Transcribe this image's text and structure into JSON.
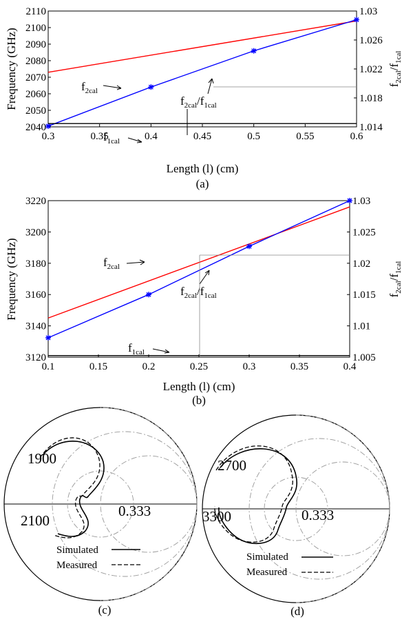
{
  "colors": {
    "f2": "#ff0000",
    "ratio": "#0000ff",
    "f1": "#000000"
  },
  "chart_data": [
    {
      "panel": "(a)",
      "type": "line",
      "xlabel": "Length (l) (cm)",
      "ylabel_left": "Frequency (GHz)",
      "ylabel_right": {
        "base": "f",
        "sub1": "2cal",
        "slash": "/f",
        "sub2": "1cal"
      },
      "xlim": [
        0.3,
        0.6
      ],
      "ylim_left": [
        2040,
        2110
      ],
      "ylim_right": [
        1.014,
        1.03
      ],
      "x_ticks": [
        "0.3",
        "0.35",
        "0.4",
        "0.45",
        "0.5",
        "0.55",
        "0.6"
      ],
      "y_left_ticks": [
        "2040",
        "2050",
        "2060",
        "2070",
        "2080",
        "2090",
        "2100",
        "2110"
      ],
      "y_right_ticks": [
        "1.014",
        "1.018",
        "1.022",
        "1.026",
        "1.03"
      ],
      "series": [
        {
          "key": "f2",
          "x": [
            0.3,
            0.6
          ],
          "y": [
            2073,
            2104
          ],
          "axis": "left"
        },
        {
          "key": "ratio",
          "x": [
            0.3,
            0.4,
            0.5,
            0.6
          ],
          "y": [
            1.0141,
            1.0195,
            1.0245,
            1.0288
          ],
          "axis": "right",
          "markers": true
        },
        {
          "key": "f1",
          "x": [
            0.3,
            0.6
          ],
          "y": [
            2042,
            2042
          ],
          "axis": "left"
        }
      ],
      "labels": {
        "f2": {
          "base": "f",
          "sub": "2cal"
        },
        "ratio": {
          "base": "f",
          "sub1": "2cal",
          "slash": "/f",
          "sub2": "1cal"
        },
        "f1": {
          "base": "f",
          "sub": "1cal"
        }
      },
      "panel_label": "(a)"
    },
    {
      "panel": "(b)",
      "type": "line",
      "xlabel": "Length (l) (cm)",
      "ylabel_left": "Frequency (GHz)",
      "ylabel_right": {
        "base": "f",
        "sub1": "2cal",
        "slash": "/f",
        "sub2": "1cal"
      },
      "xlim": [
        0.1,
        0.4
      ],
      "ylim_left": [
        3120,
        3220
      ],
      "ylim_right": [
        1.005,
        1.03
      ],
      "x_ticks": [
        "0.1",
        "0.15",
        "0.2",
        "0.25",
        "0.3",
        "0.35",
        "0.4"
      ],
      "y_left_ticks": [
        "3120",
        "3140",
        "3160",
        "3180",
        "3200",
        "3220"
      ],
      "y_right_ticks": [
        "1.005",
        "1.01",
        "1.015",
        "1.02",
        "1.025",
        "1.03"
      ],
      "series": [
        {
          "key": "f2",
          "x": [
            0.1,
            0.4
          ],
          "y": [
            3145,
            3216
          ],
          "axis": "left"
        },
        {
          "key": "ratio",
          "x": [
            0.1,
            0.2,
            0.3,
            0.4
          ],
          "y": [
            1.0081,
            1.015,
            1.0227,
            1.03
          ],
          "axis": "right",
          "markers": true
        },
        {
          "key": "f1",
          "x": [
            0.1,
            0.4
          ],
          "y": [
            3121,
            3121
          ],
          "axis": "left"
        }
      ],
      "labels": {
        "f2": {
          "base": "f",
          "sub": "2cal"
        },
        "ratio": {
          "base": "f",
          "sub1": "2cal",
          "slash": "/f",
          "sub2": "1cal"
        },
        "f1": {
          "base": "f",
          "sub": "1cal"
        }
      },
      "panel_label": "(b)"
    }
  ],
  "smith_c": {
    "label_top": "1900",
    "label_bottom": "2100",
    "label_r": "0.333",
    "legend_sim": "Simulated",
    "legend_meas": "Measured",
    "panel_label": "(c)"
  },
  "smith_d": {
    "label_top": "2700",
    "label_bottom": "3300",
    "label_r": "0.333",
    "legend_sim": "Simulated",
    "legend_meas": "Measured",
    "panel_label": "(d)"
  }
}
